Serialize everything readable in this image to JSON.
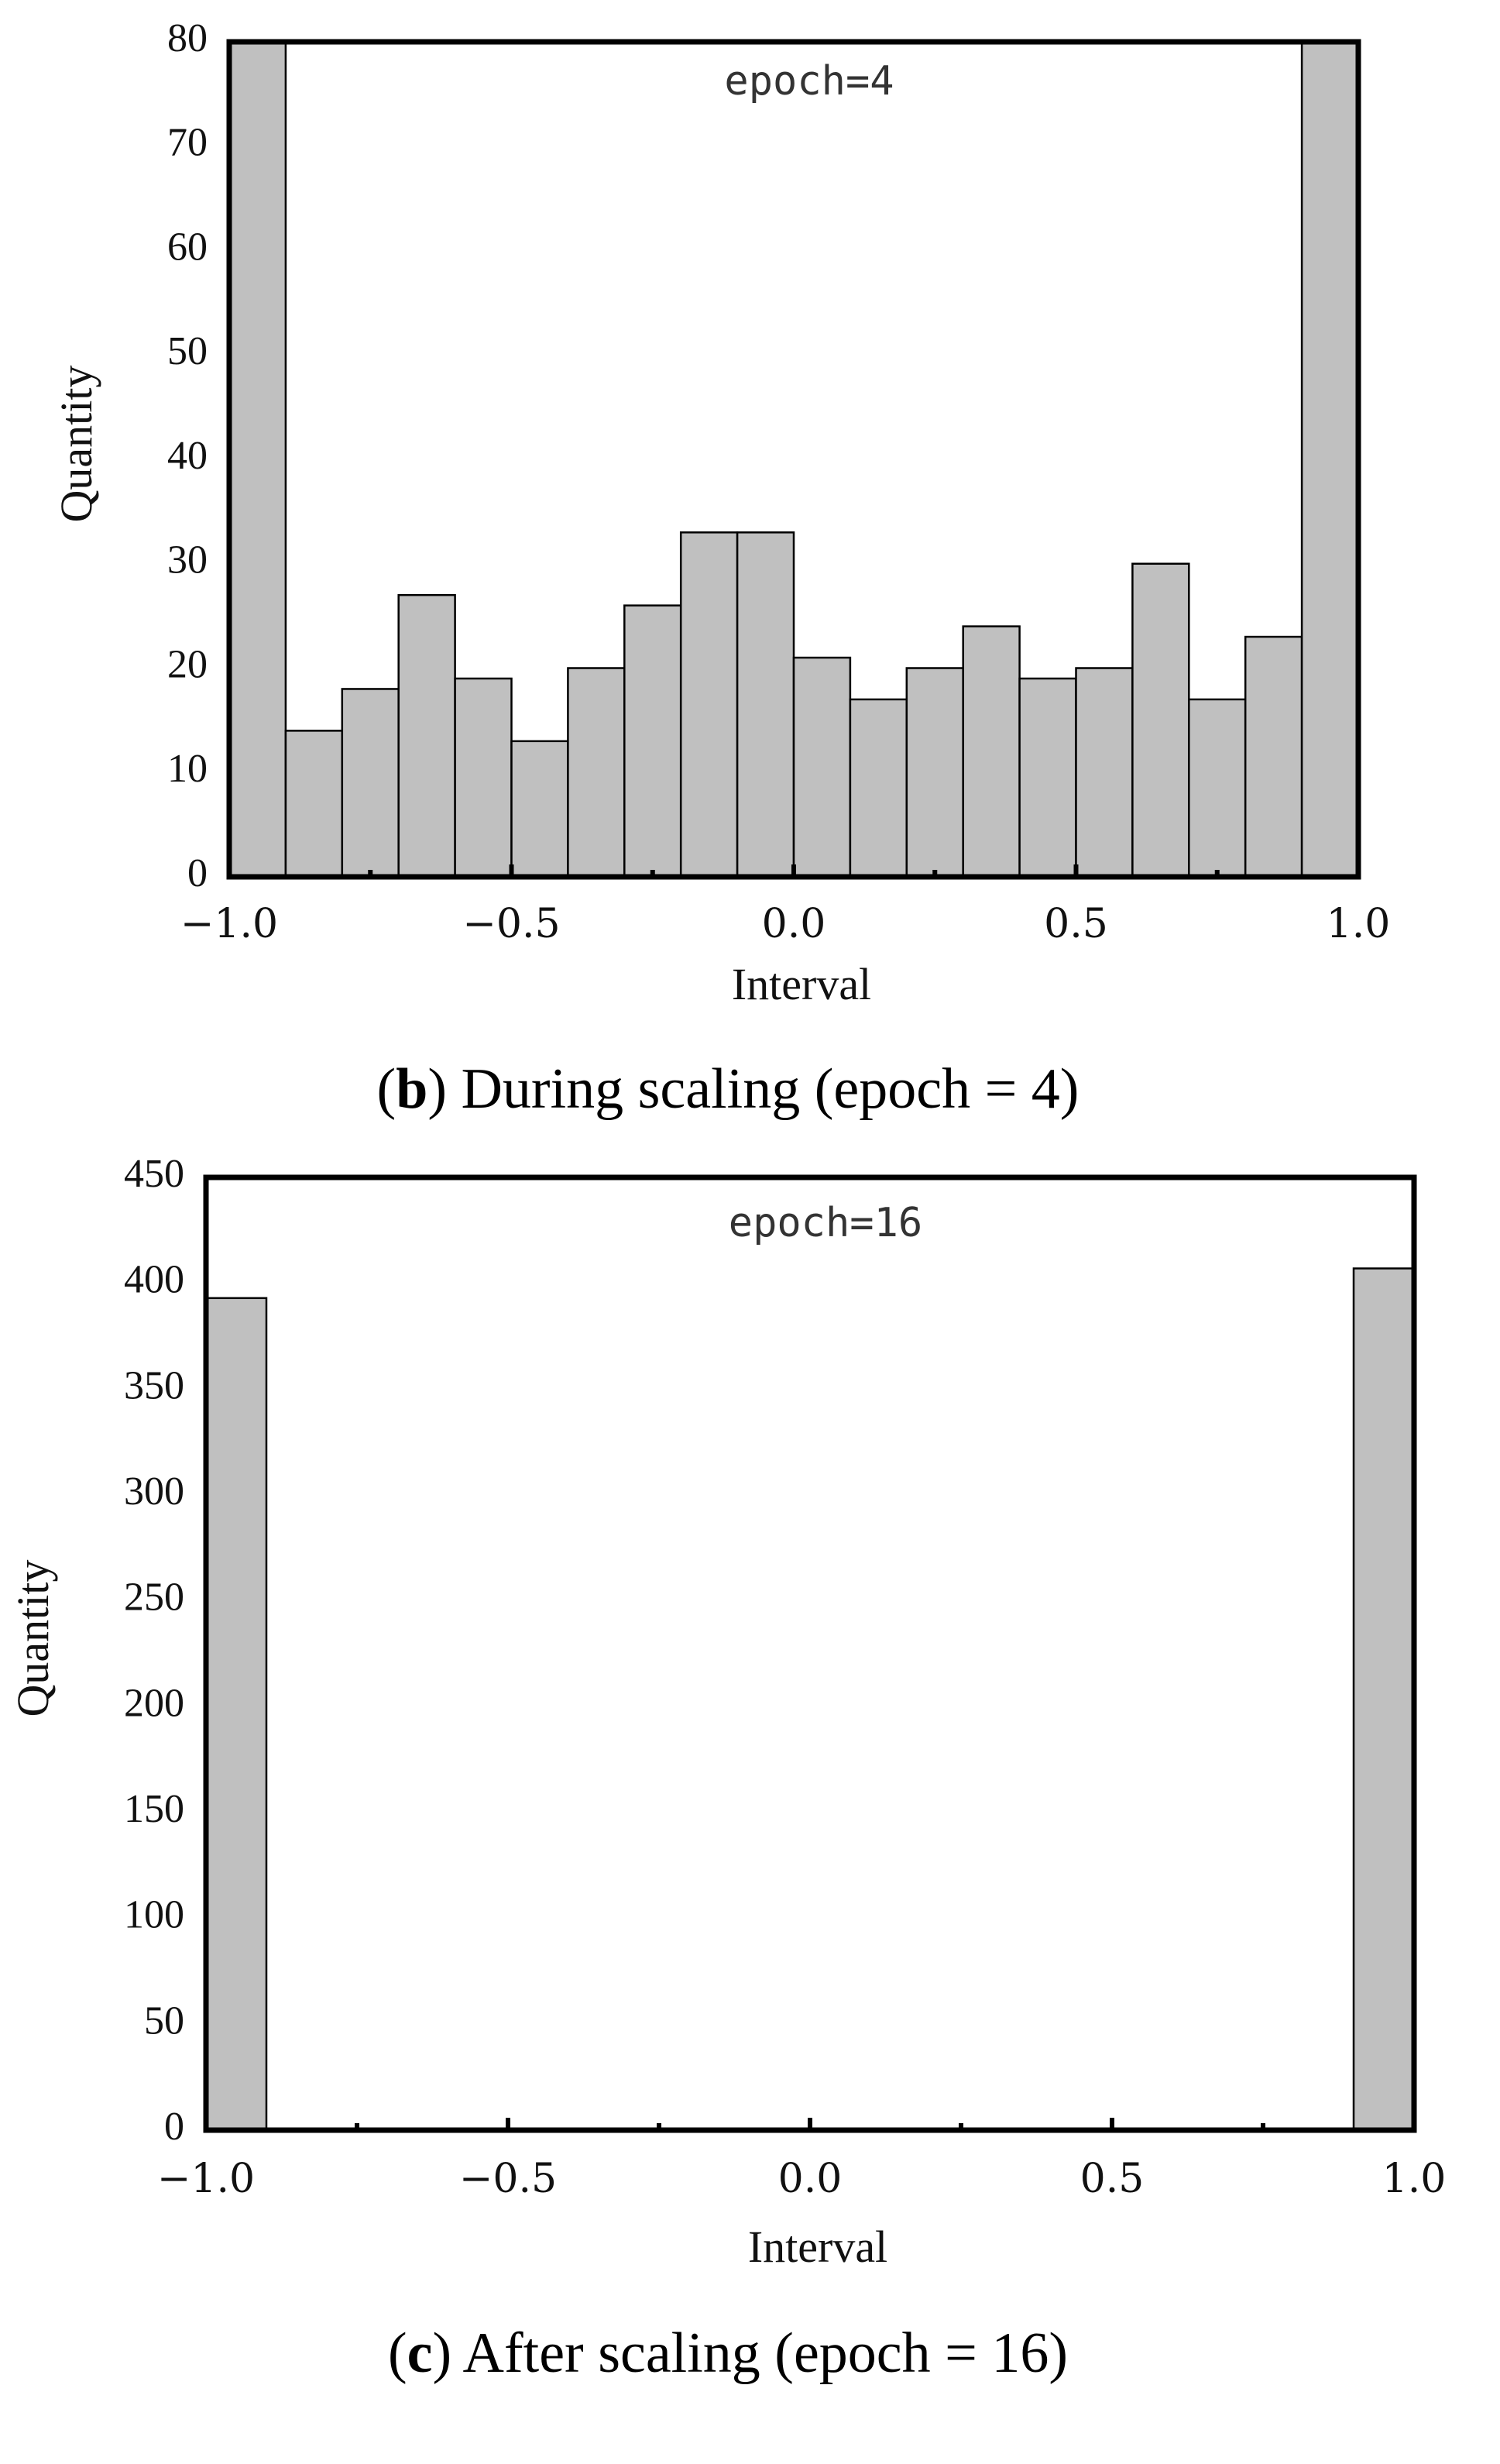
{
  "colors": {
    "bar_fill": "#c0c0c0",
    "bar_stroke": "#000000",
    "frame": "#000000",
    "background": "#ffffff"
  },
  "chart_data": [
    {
      "type": "bar",
      "annotation": "epoch=4",
      "xlabel": "Interval",
      "ylabel": "Quantity",
      "xlim": [
        -1.0,
        1.0
      ],
      "ylim": [
        0,
        80
      ],
      "yticks": [
        "0",
        "10",
        "20",
        "30",
        "40",
        "50",
        "60",
        "70",
        "80"
      ],
      "xticks": [
        "-1.0",
        "-0.5",
        "0.0",
        "0.5",
        "1.0"
      ],
      "bin_edges": [
        -1.0,
        -0.9,
        -0.8,
        -0.7,
        -0.6,
        -0.5,
        -0.4,
        -0.3,
        -0.2,
        -0.1,
        0.0,
        0.1,
        0.2,
        0.3,
        0.4,
        0.5,
        0.6,
        0.7,
        0.8,
        0.9,
        1.0
      ],
      "values": [
        80,
        14,
        18,
        27,
        19,
        13,
        20,
        26,
        33,
        33,
        21,
        17,
        20,
        24,
        19,
        20,
        30,
        17,
        23,
        80
      ],
      "grid": false,
      "caption": {
        "letter": "b",
        "text": ") During scaling (epoch = 4)",
        "open": "("
      }
    },
    {
      "type": "bar",
      "annotation": "epoch=16",
      "xlabel": "Interval",
      "ylabel": "Quantity",
      "xlim": [
        -1.0,
        1.0
      ],
      "ylim": [
        0,
        450
      ],
      "yticks": [
        "0",
        "50",
        "100",
        "150",
        "200",
        "250",
        "300",
        "350",
        "400",
        "450"
      ],
      "xticks": [
        "-1.0",
        "-0.5",
        "0.0",
        "0.5",
        "1.0"
      ],
      "bin_edges": [
        -1.0,
        -0.9,
        -0.8,
        -0.7,
        -0.6,
        -0.5,
        -0.4,
        -0.3,
        -0.2,
        -0.1,
        0.0,
        0.1,
        0.2,
        0.3,
        0.4,
        0.5,
        0.6,
        0.7,
        0.8,
        0.9,
        1.0
      ],
      "values": [
        393,
        0,
        0,
        0,
        0,
        0,
        0,
        0,
        0,
        0,
        0,
        0,
        0,
        0,
        0,
        0,
        0,
        0,
        0,
        407
      ],
      "grid": false,
      "caption": {
        "letter": "c",
        "text": ") After scaling (epoch = 16)",
        "open": "("
      }
    }
  ]
}
